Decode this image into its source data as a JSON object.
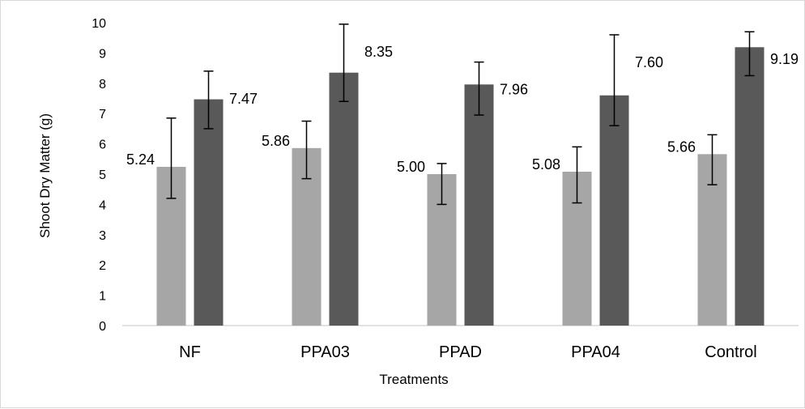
{
  "chart_data": {
    "type": "bar",
    "xlabel": "Treatments",
    "ylabel": "Shoot Dry Matter (g)",
    "ylim": [
      0,
      10
    ],
    "yticks": [
      0,
      1,
      2,
      3,
      4,
      5,
      6,
      7,
      8,
      9,
      10
    ],
    "grid": false,
    "legend": "none",
    "categories": [
      "NF",
      "PPA03",
      "PPAD",
      "PPA04",
      "Control"
    ],
    "series": [
      {
        "color": "#a6a6a6",
        "values": [
          5.24,
          5.86,
          5.0,
          5.08,
          5.66
        ],
        "labels": [
          "5.24",
          "5.86",
          "5.00",
          "5.08",
          "5.66"
        ],
        "error_low": [
          4.2,
          4.85,
          4.0,
          4.05,
          4.65
        ],
        "error_high": [
          6.85,
          6.75,
          5.35,
          5.9,
          6.3
        ]
      },
      {
        "color": "#595959",
        "values": [
          7.47,
          8.35,
          7.96,
          7.6,
          9.19
        ],
        "labels": [
          "7.47",
          "8.35",
          "7.96",
          "7.60",
          "9.19"
        ],
        "error_low": [
          6.5,
          7.4,
          6.95,
          6.6,
          8.25
        ],
        "error_high": [
          8.4,
          9.95,
          8.7,
          9.6,
          9.7
        ]
      }
    ]
  }
}
